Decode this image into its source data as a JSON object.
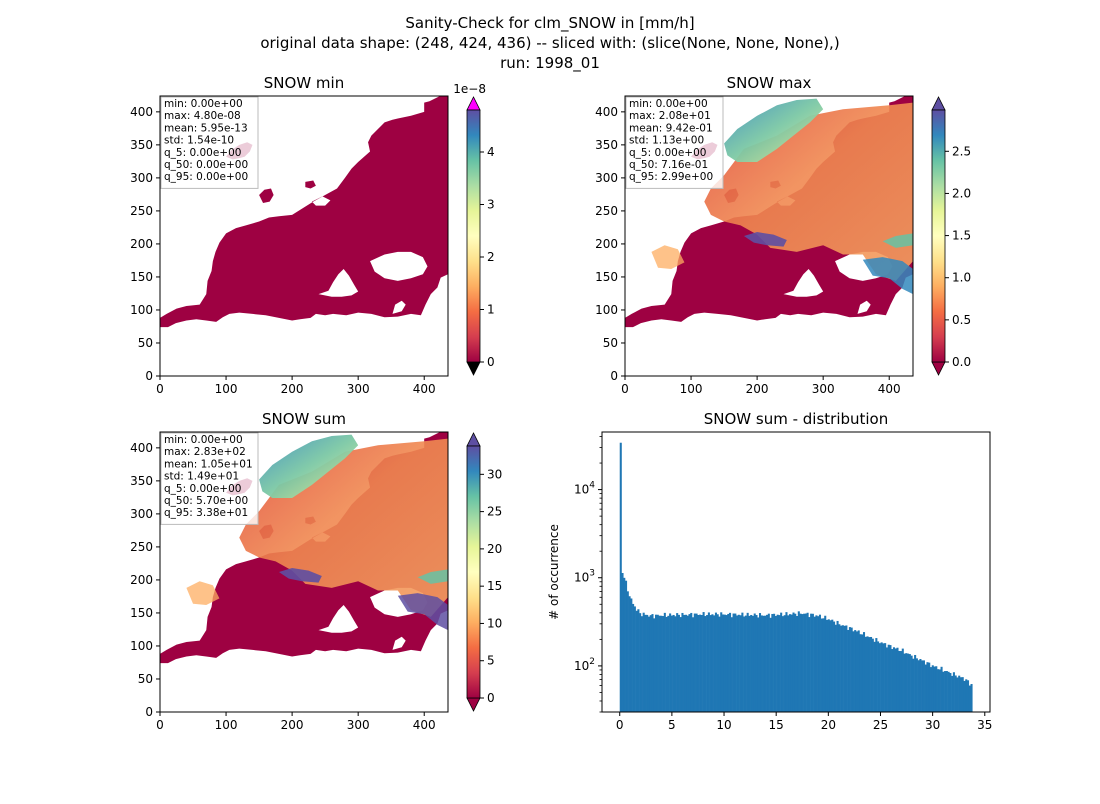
{
  "suptitle": [
    "Sanity-Check for clm_SNOW in [mm/h]",
    "original data shape: (248, 424, 436) -- sliced with: (slice(None, None, None),)",
    "run: 1998_01"
  ],
  "chart_data": [
    {
      "type": "heatmap",
      "title": "SNOW min",
      "xlim": [
        0,
        436
      ],
      "ylim": [
        0,
        424
      ],
      "xticks": [
        "0",
        "100",
        "200",
        "300",
        "400"
      ],
      "yticks": [
        "0",
        "50",
        "100",
        "150",
        "200",
        "250",
        "300",
        "350",
        "400"
      ],
      "colorbar": {
        "min": 0,
        "max": 4.8,
        "ticks": [
          "0",
          "1",
          "2",
          "3",
          "4"
        ],
        "offset_label": "1e−8",
        "extend": "both",
        "over_color": "#ff00ff",
        "under_color": "#000000"
      },
      "stats": [
        "min: 0.00e+00",
        "max: 4.80e-08",
        "mean: 5.95e-13",
        "std: 1.54e-10",
        "q_5: 0.00e+00",
        "q_50: 0.00e+00",
        "q_95: 0.00e+00"
      ]
    },
    {
      "type": "heatmap",
      "title": "SNOW max",
      "xlim": [
        0,
        436
      ],
      "ylim": [
        0,
        424
      ],
      "xticks": [
        "0",
        "100",
        "200",
        "300",
        "400"
      ],
      "yticks": [
        "0",
        "50",
        "100",
        "150",
        "200",
        "250",
        "300",
        "350",
        "400"
      ],
      "colorbar": {
        "min": 0,
        "max": 2.99,
        "ticks": [
          "0.0",
          "0.5",
          "1.0",
          "1.5",
          "2.0",
          "2.5"
        ],
        "extend": "both"
      },
      "stats": [
        "min: 0.00e+00",
        "max: 2.08e+01",
        "mean: 9.42e-01",
        "std: 1.13e+00",
        "q_5: 0.00e+00",
        "q_50: 7.16e-01",
        "q_95: 2.99e+00"
      ]
    },
    {
      "type": "heatmap",
      "title": "SNOW sum",
      "xlim": [
        0,
        436
      ],
      "ylim": [
        0,
        424
      ],
      "xticks": [
        "0",
        "100",
        "200",
        "300",
        "400"
      ],
      "yticks": [
        "0",
        "50",
        "100",
        "150",
        "200",
        "250",
        "300",
        "350",
        "400"
      ],
      "colorbar": {
        "min": 0,
        "max": 33.8,
        "ticks": [
          "0",
          "5",
          "10",
          "15",
          "20",
          "25",
          "30"
        ],
        "extend": "both"
      },
      "stats": [
        "min: 0.00e+00",
        "max: 2.83e+02",
        "mean: 1.05e+01",
        "std: 1.49e+01",
        "q_5: 0.00e+00",
        "q_50: 5.70e+00",
        "q_95: 3.38e+01"
      ]
    },
    {
      "type": "bar",
      "title": "SNOW sum - distribution",
      "ylabel": "# of occurrence",
      "yscale": "log",
      "xlim": [
        -1.7,
        35.5
      ],
      "ylim": [
        30,
        45000
      ],
      "xticks": [
        "0",
        "5",
        "10",
        "15",
        "20",
        "25",
        "30",
        "35"
      ],
      "yticks": [
        "10^2",
        "10^3",
        "10^4"
      ],
      "bin_range": [
        0,
        33.8
      ],
      "bin_count": 200,
      "bar_color": "#1f77b4",
      "profile_points": [
        [
          0,
          34000
        ],
        [
          0.17,
          1200
        ],
        [
          0.34,
          1100
        ],
        [
          0.5,
          950
        ],
        [
          0.7,
          780
        ],
        [
          0.9,
          640
        ],
        [
          1.1,
          560
        ],
        [
          1.3,
          500
        ],
        [
          1.6,
          440
        ],
        [
          2,
          390
        ],
        [
          3,
          370
        ],
        [
          4,
          375
        ],
        [
          6,
          380
        ],
        [
          8,
          385
        ],
        [
          10,
          385
        ],
        [
          12,
          380
        ],
        [
          14,
          375
        ],
        [
          16,
          385
        ],
        [
          17.5,
          395
        ],
        [
          19,
          370
        ],
        [
          20,
          340
        ],
        [
          21,
          300
        ],
        [
          22,
          270
        ],
        [
          23,
          240
        ],
        [
          24,
          210
        ],
        [
          25,
          185
        ],
        [
          26,
          165
        ],
        [
          27,
          150
        ],
        [
          28,
          130
        ],
        [
          29,
          115
        ],
        [
          30,
          100
        ],
        [
          31,
          90
        ],
        [
          32,
          80
        ],
        [
          33,
          72
        ],
        [
          33.8,
          60
        ]
      ]
    }
  ]
}
